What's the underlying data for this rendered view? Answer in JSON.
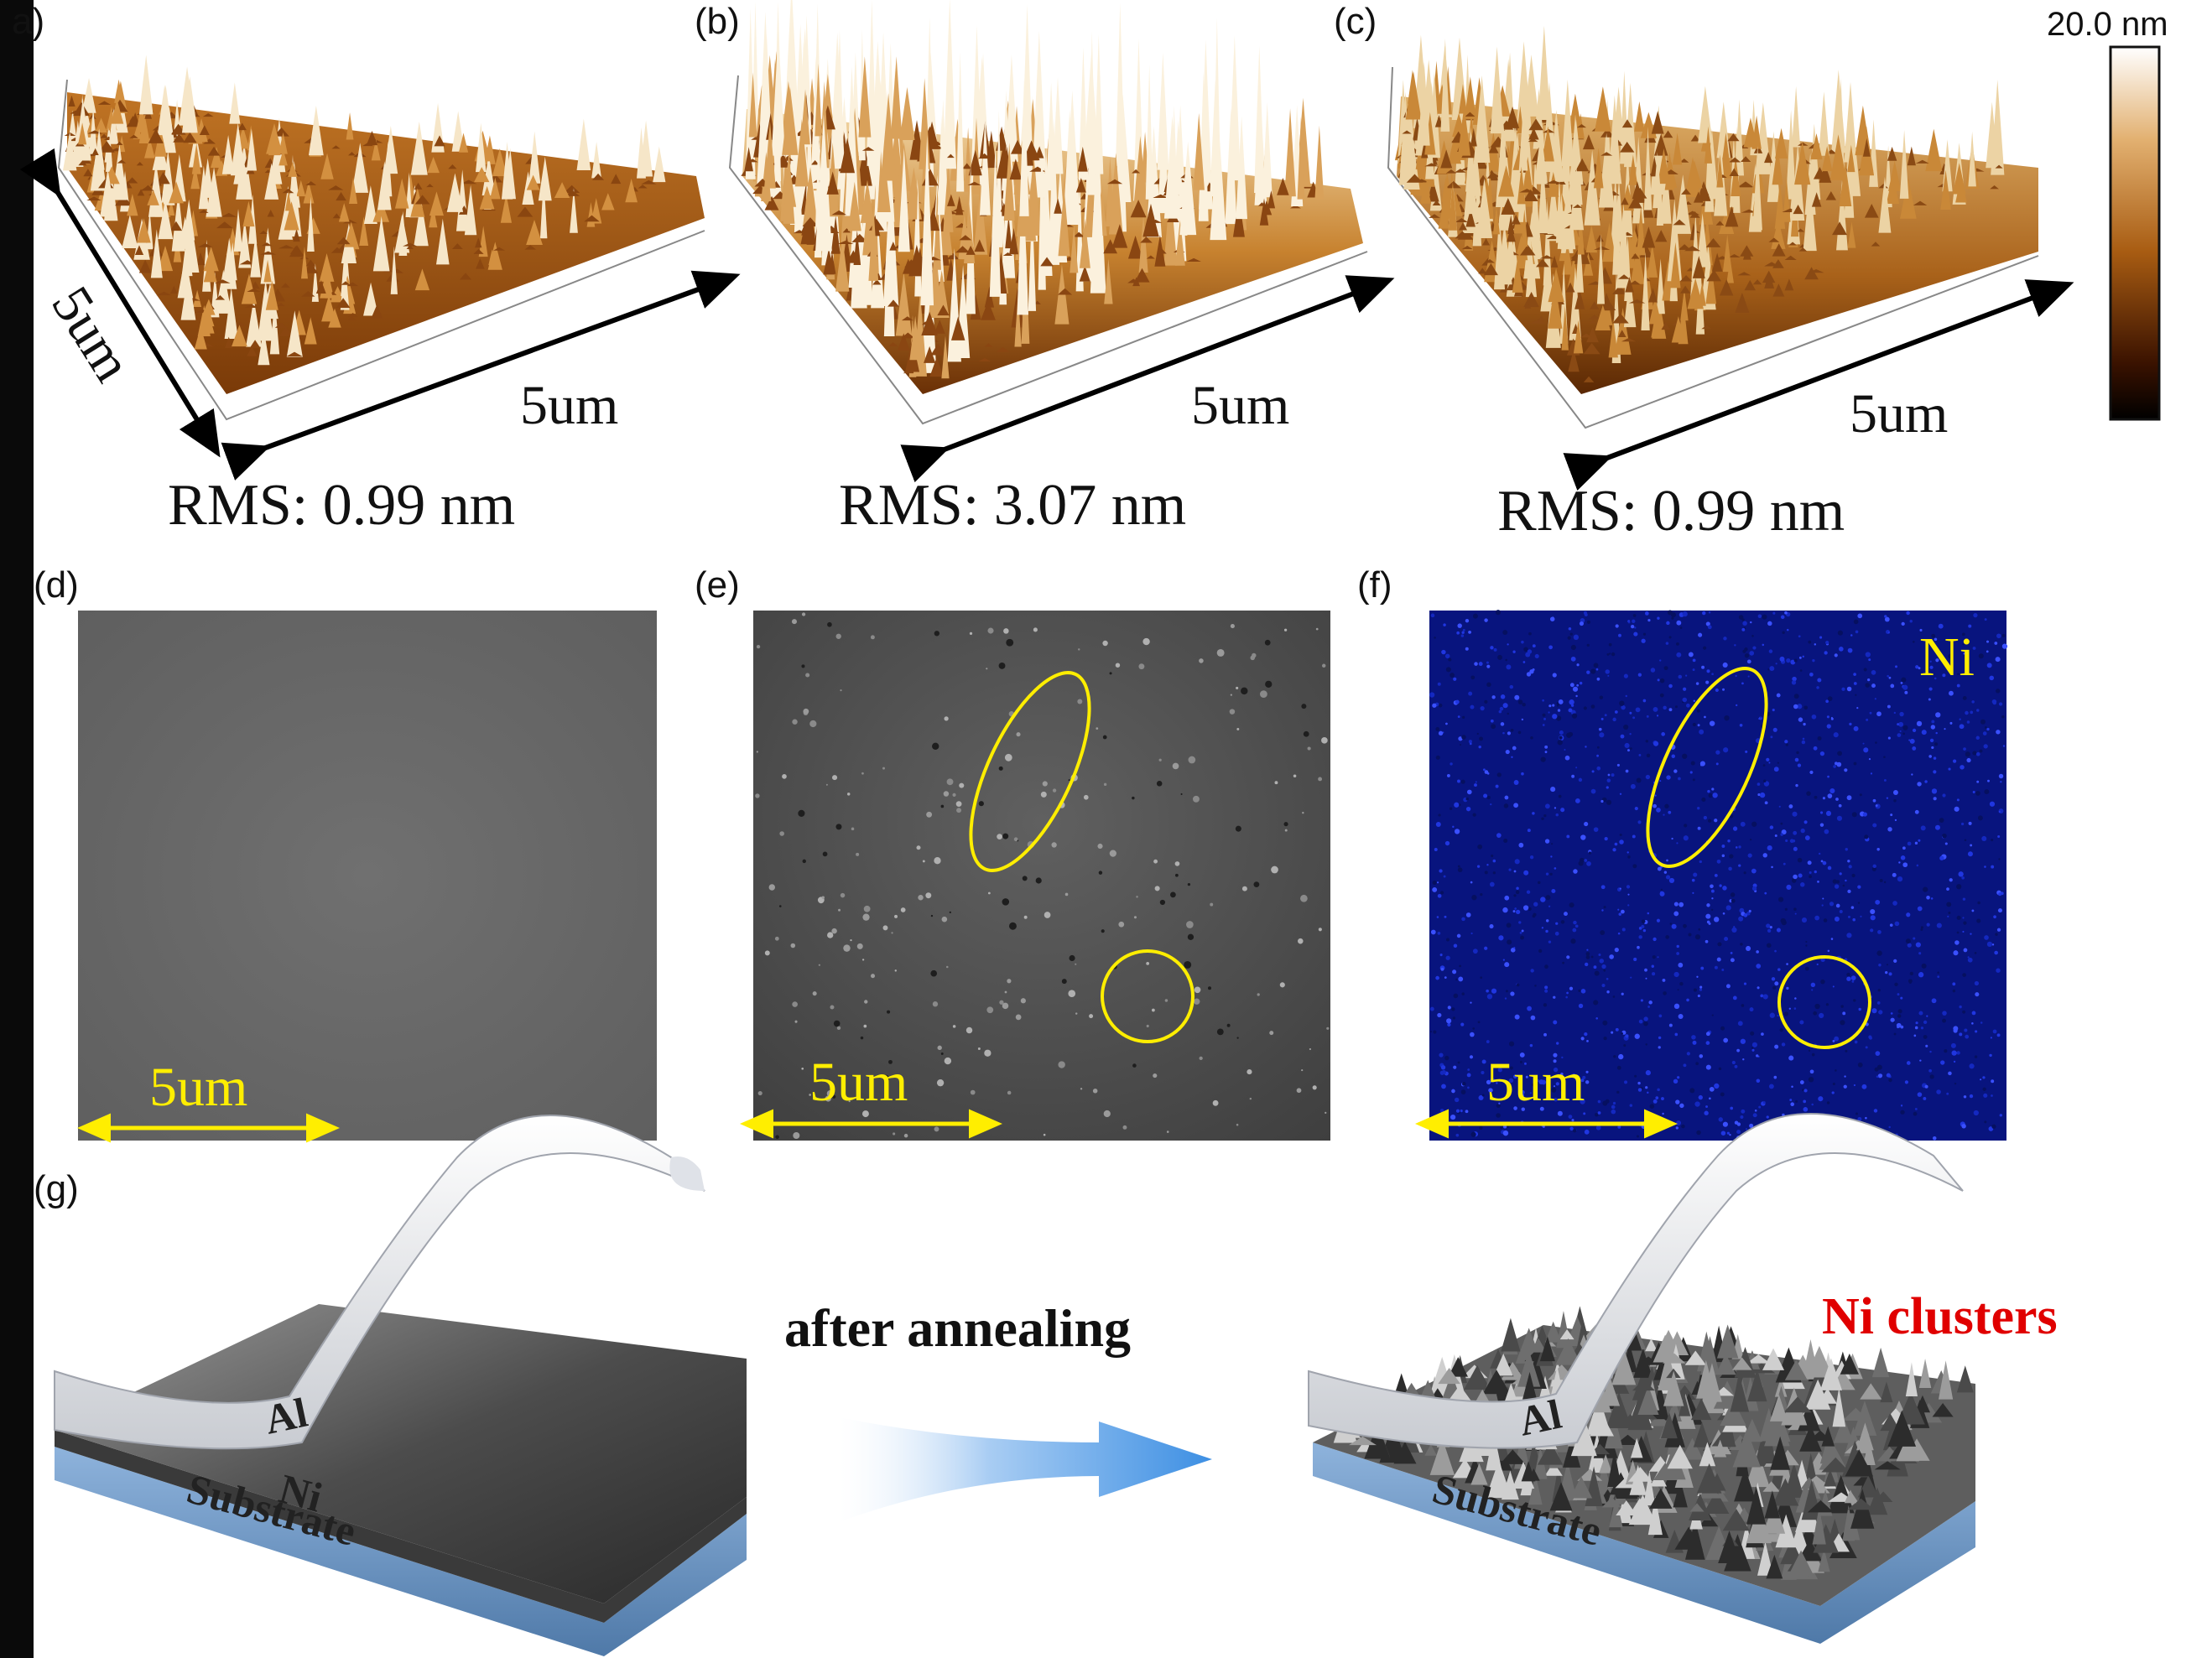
{
  "panels": {
    "a": {
      "label": "a)",
      "rms": "RMS: 0.99 nm",
      "x_dim": "5um",
      "y_dim": "5um"
    },
    "b": {
      "label": "(b)",
      "rms": "RMS: 3.07 nm",
      "x_dim": "5um"
    },
    "c": {
      "label": "(c)",
      "rms": "RMS: 0.99 nm",
      "x_dim": "5um"
    },
    "d": {
      "label": "(d)",
      "scale": "5um"
    },
    "e": {
      "label": "(e)",
      "scale": "5um"
    },
    "f": {
      "label": "(f)",
      "scale": "5um",
      "element": "Ni"
    },
    "g": {
      "label": "(g)",
      "arrow_text": "after annealing",
      "left_layers": [
        "Al",
        "Ni",
        "Substrate"
      ],
      "right_layers": [
        "Al",
        "Substrate"
      ],
      "right_note": "Ni clusters"
    }
  },
  "colorbar": {
    "max_label": "20.0 nm"
  },
  "colors": {
    "afm_low": "#2a0c00",
    "afm_mid": "#a65a10",
    "afm_high": "#f7ecd6",
    "sem_gray": "#6b6b6b",
    "eds_blue": "#0b1a9c",
    "highlight_yellow": "#ffee00",
    "cluster_red": "#e00000",
    "arrow_blue": "#4d9be6"
  }
}
